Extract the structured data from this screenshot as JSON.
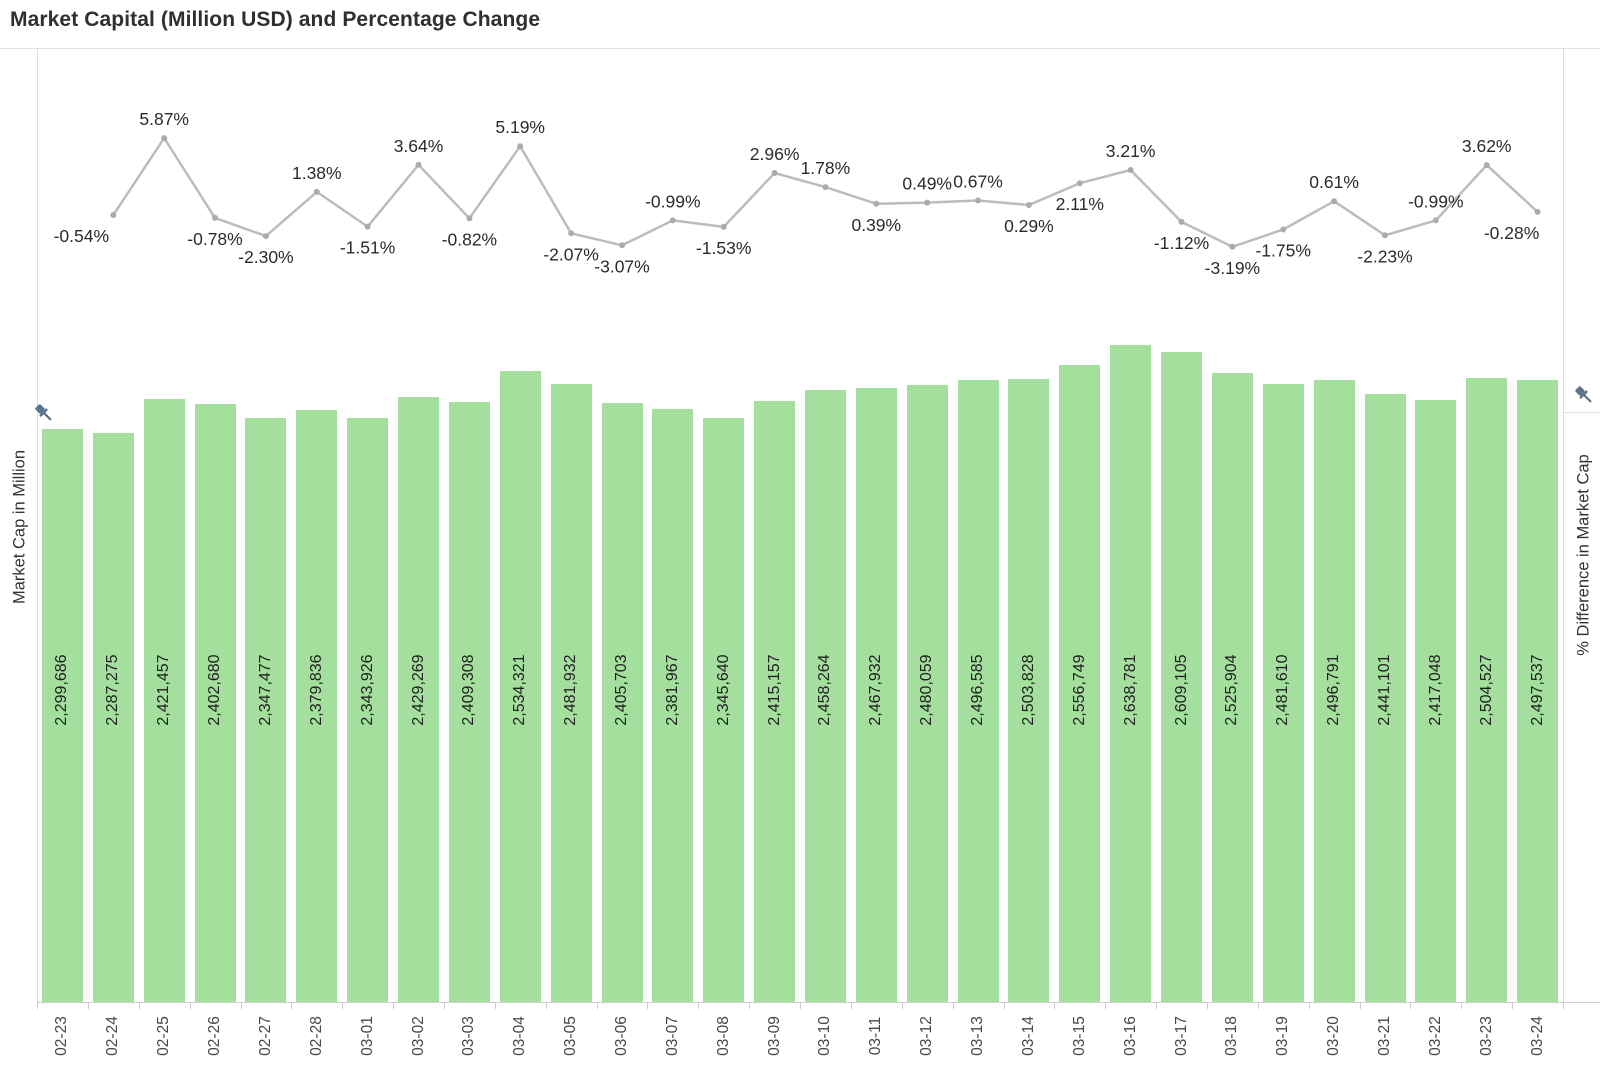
{
  "title": "Market Capital (Million USD) and Percentage Change",
  "left_axis": {
    "label": "Market Cap in Million",
    "icon": "pushpin-icon"
  },
  "right_axis": {
    "label": "% Difference in Market Cap",
    "icon": "pushpin-icon"
  },
  "colors": {
    "bar_fill": "#a4df9e",
    "line": "#babdbf",
    "marker": "#a9acae",
    "pct_label_text": "#2b2b2b",
    "bar_label_text": "#1f1f1f",
    "date_label_text": "#474747",
    "axis_line": "#cfcfcf",
    "pin": "#5d7389",
    "title_text": "#2f2f2f"
  },
  "chart_data": {
    "type": "combo",
    "title": "Market Capital (Million USD) and Percentage Change",
    "categories": [
      "02-23",
      "02-24",
      "02-25",
      "02-26",
      "02-27",
      "02-28",
      "03-01",
      "03-02",
      "03-03",
      "03-04",
      "03-05",
      "03-06",
      "03-07",
      "03-08",
      "03-09",
      "03-10",
      "03-11",
      "03-12",
      "03-13",
      "03-14",
      "03-15",
      "03-16",
      "03-17",
      "03-18",
      "03-19",
      "03-20",
      "03-21",
      "03-22",
      "03-23",
      "03-24"
    ],
    "left_ylabel": "Market Cap in Million",
    "right_ylabel": "% Difference in Market Cap",
    "grid": false,
    "legend": "none",
    "bar_axis_min": 0,
    "series": [
      {
        "name": "Market Cap (Million USD)",
        "type": "bar",
        "values": [
          2299686,
          2287275,
          2421457,
          2402680,
          2347477,
          2379836,
          2343926,
          2429269,
          2409308,
          2534321,
          2481932,
          2405703,
          2381967,
          2345640,
          2415157,
          2458264,
          2467932,
          2480059,
          2496585,
          2503828,
          2556749,
          2638781,
          2609105,
          2525904,
          2481610,
          2496791,
          2441101,
          2417048,
          2504527,
          2497537
        ]
      },
      {
        "name": "% Difference in Market Cap",
        "type": "line",
        "x": [
          "02-24",
          "02-25",
          "02-26",
          "02-27",
          "02-28",
          "03-01",
          "03-02",
          "03-03",
          "03-04",
          "03-05",
          "03-06",
          "03-07",
          "03-08",
          "03-09",
          "03-10",
          "03-11",
          "03-12",
          "03-13",
          "03-14",
          "03-15",
          "03-16",
          "03-17",
          "03-18",
          "03-19",
          "03-20",
          "03-21",
          "03-22",
          "03-23",
          "03-24"
        ],
        "values": [
          -0.54,
          5.87,
          -0.78,
          -2.3,
          1.38,
          -1.51,
          3.64,
          -0.82,
          5.19,
          -2.07,
          -3.07,
          -0.99,
          -1.53,
          2.96,
          1.78,
          0.39,
          0.49,
          0.67,
          0.29,
          2.11,
          3.21,
          -1.12,
          -3.19,
          -1.75,
          0.61,
          -2.23,
          -0.99,
          3.62,
          -0.28
        ],
        "label_positions": [
          "below",
          "above",
          "below",
          "below",
          "above",
          "below",
          "above",
          "below",
          "above",
          "below",
          "below",
          "above",
          "below",
          "above",
          "above",
          "below",
          "above",
          "above",
          "below",
          "below",
          "above",
          "below",
          "below",
          "below",
          "above",
          "below",
          "above",
          "above",
          "below"
        ]
      }
    ]
  }
}
